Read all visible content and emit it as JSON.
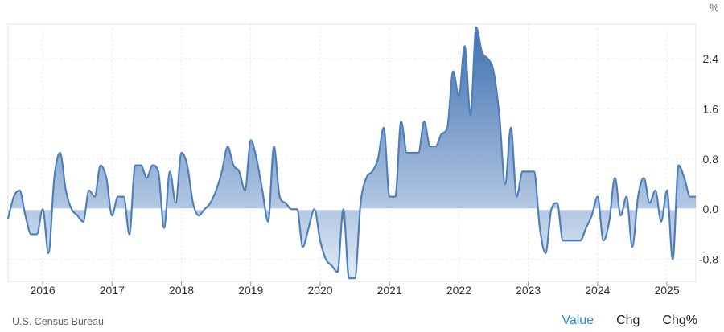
{
  "unit_label": "%",
  "source": "U.S. Census Bureau",
  "tabs": [
    {
      "label": "Value",
      "active": true
    },
    {
      "label": "Chg",
      "active": false
    },
    {
      "label": "Chg%",
      "active": false
    }
  ],
  "colors": {
    "line": "#4f7fba",
    "fill_top": "#3e6fb0",
    "fill_bottom": "#dbe6f4",
    "grid": "#e6e6e6",
    "active_tab": "#2f8ad6"
  },
  "chart_data": {
    "type": "area",
    "title": "",
    "xlabel": "",
    "ylabel": "",
    "x_tick_labels": [
      "2016",
      "2017",
      "2018",
      "2019",
      "2020",
      "2021",
      "2022",
      "2023",
      "2024",
      "2025"
    ],
    "y_ticks": [
      -0.8,
      0.0,
      0.8,
      1.6,
      2.4
    ],
    "y_tick_labels": [
      "-0.8",
      "0.0",
      "0.8",
      "1.6",
      "2.4"
    ],
    "ylim": [
      -1.15,
      2.95
    ],
    "xlim": [
      "2015-07",
      "2025-06"
    ],
    "grid": true,
    "series": [
      {
        "values": [
          [
            "2015-07",
            -0.15
          ],
          [
            "2015-08",
            0.2
          ],
          [
            "2015-09",
            0.3
          ],
          [
            "2015-10",
            -0.1
          ],
          [
            "2015-11",
            -0.4
          ],
          [
            "2015-12",
            -0.4
          ],
          [
            "2016-01",
            0.0
          ],
          [
            "2016-02",
            -0.7
          ],
          [
            "2016-03",
            0.5
          ],
          [
            "2016-04",
            0.9
          ],
          [
            "2016-05",
            0.3
          ],
          [
            "2016-06",
            0.0
          ],
          [
            "2016-07",
            -0.1
          ],
          [
            "2016-08",
            -0.2
          ],
          [
            "2016-09",
            0.3
          ],
          [
            "2016-10",
            0.2
          ],
          [
            "2016-11",
            0.7
          ],
          [
            "2016-12",
            0.5
          ],
          [
            "2017-01",
            -0.1
          ],
          [
            "2017-02",
            0.2
          ],
          [
            "2017-03",
            0.2
          ],
          [
            "2017-04",
            -0.4
          ],
          [
            "2017-05",
            0.7
          ],
          [
            "2017-06",
            0.7
          ],
          [
            "2017-07",
            0.5
          ],
          [
            "2017-08",
            0.7
          ],
          [
            "2017-09",
            0.6
          ],
          [
            "2017-10",
            -0.3
          ],
          [
            "2017-11",
            0.6
          ],
          [
            "2017-12",
            0.1
          ],
          [
            "2018-01",
            0.9
          ],
          [
            "2018-02",
            0.7
          ],
          [
            "2018-03",
            0.1
          ],
          [
            "2018-04",
            -0.1
          ],
          [
            "2018-05",
            0.0
          ],
          [
            "2018-06",
            0.1
          ],
          [
            "2018-07",
            0.3
          ],
          [
            "2018-08",
            0.6
          ],
          [
            "2018-09",
            1.0
          ],
          [
            "2018-10",
            0.7
          ],
          [
            "2018-11",
            0.6
          ],
          [
            "2018-12",
            0.3
          ],
          [
            "2019-01",
            1.1
          ],
          [
            "2019-02",
            0.8
          ],
          [
            "2019-03",
            0.3
          ],
          [
            "2019-04",
            -0.2
          ],
          [
            "2019-05",
            1.0
          ],
          [
            "2019-06",
            0.2
          ],
          [
            "2019-07",
            0.1
          ],
          [
            "2019-08",
            0.0
          ],
          [
            "2019-09",
            0.0
          ],
          [
            "2019-10",
            -0.6
          ],
          [
            "2019-11",
            -0.3
          ],
          [
            "2019-12",
            0.0
          ],
          [
            "2020-01",
            -0.5
          ],
          [
            "2020-02",
            -0.8
          ],
          [
            "2020-03",
            -0.9
          ],
          [
            "2020-04",
            -1.0
          ],
          [
            "2020-05",
            0.0
          ],
          [
            "2020-06",
            -1.1
          ],
          [
            "2020-07",
            -1.1
          ],
          [
            "2020-08",
            0.1
          ],
          [
            "2020-09",
            0.5
          ],
          [
            "2020-10",
            0.6
          ],
          [
            "2020-11",
            0.8
          ],
          [
            "2020-12",
            1.3
          ],
          [
            "2021-01",
            0.2
          ],
          [
            "2021-02",
            0.2
          ],
          [
            "2021-03",
            1.4
          ],
          [
            "2021-04",
            0.9
          ],
          [
            "2021-05",
            0.9
          ],
          [
            "2021-06",
            0.9
          ],
          [
            "2021-07",
            1.4
          ],
          [
            "2021-08",
            1.0
          ],
          [
            "2021-09",
            1.0
          ],
          [
            "2021-10",
            1.2
          ],
          [
            "2021-11",
            1.3
          ],
          [
            "2021-12",
            2.2
          ],
          [
            "2022-01",
            1.8
          ],
          [
            "2022-02",
            2.6
          ],
          [
            "2022-03",
            1.5
          ],
          [
            "2022-04",
            2.9
          ],
          [
            "2022-05",
            2.5
          ],
          [
            "2022-06",
            2.4
          ],
          [
            "2022-07",
            2.2
          ],
          [
            "2022-08",
            1.5
          ],
          [
            "2022-09",
            0.4
          ],
          [
            "2022-10",
            1.3
          ],
          [
            "2022-11",
            0.2
          ],
          [
            "2022-12",
            0.6
          ],
          [
            "2023-01",
            0.6
          ],
          [
            "2023-02",
            0.6
          ],
          [
            "2023-03",
            -0.3
          ],
          [
            "2023-04",
            -0.7
          ],
          [
            "2023-05",
            0.0
          ],
          [
            "2023-06",
            0.1
          ],
          [
            "2023-07",
            -0.5
          ],
          [
            "2023-08",
            -0.5
          ],
          [
            "2023-09",
            -0.5
          ],
          [
            "2023-10",
            -0.5
          ],
          [
            "2023-11",
            -0.3
          ],
          [
            "2023-12",
            -0.1
          ],
          [
            "2024-01",
            0.2
          ],
          [
            "2024-02",
            -0.5
          ],
          [
            "2024-03",
            -0.2
          ],
          [
            "2024-04",
            0.5
          ],
          [
            "2024-05",
            -0.1
          ],
          [
            "2024-06",
            0.2
          ],
          [
            "2024-07",
            -0.6
          ],
          [
            "2024-08",
            0.2
          ],
          [
            "2024-09",
            0.5
          ],
          [
            "2024-10",
            0.1
          ],
          [
            "2024-11",
            0.3
          ],
          [
            "2024-12",
            -0.2
          ],
          [
            "2025-01",
            0.3
          ],
          [
            "2025-02",
            -0.8
          ],
          [
            "2025-03",
            0.7
          ],
          [
            "2025-04",
            0.5
          ],
          [
            "2025-05",
            0.2
          ],
          [
            "2025-06",
            0.2
          ]
        ]
      }
    ]
  }
}
